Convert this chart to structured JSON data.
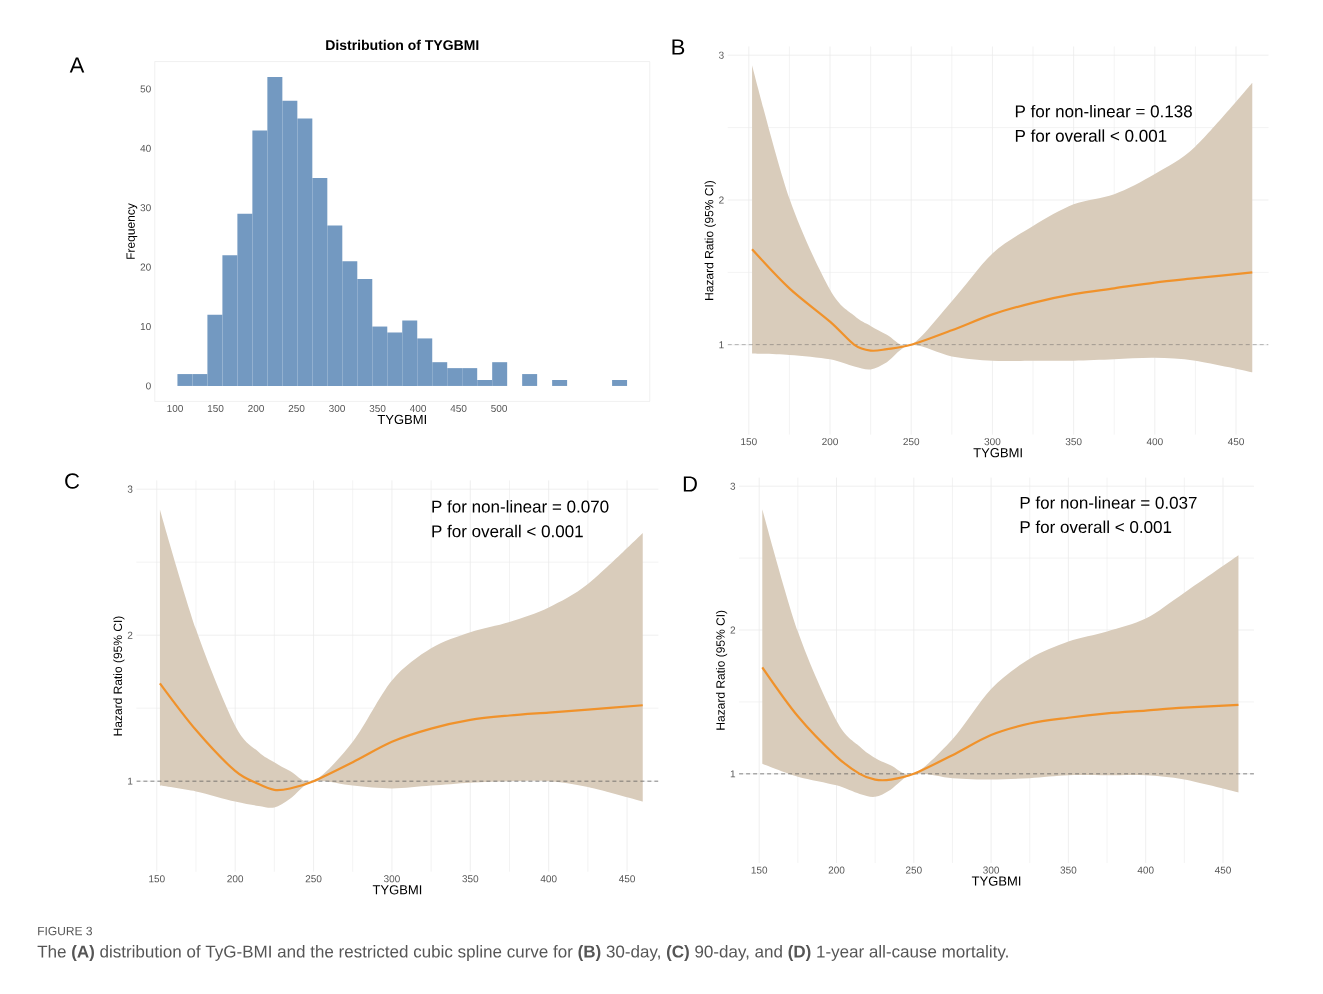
{
  "chart_data": [
    {
      "type": "histogram",
      "title": "Distribution of TYGBMI",
      "xlabel": "TYGBMI",
      "ylabel": "Frequency",
      "bins": [
        103,
        121.5,
        140,
        158.5,
        177,
        195.5,
        214,
        232.5,
        251,
        269.5,
        288,
        306.5,
        325,
        343.5,
        362,
        380.5,
        399,
        417.5,
        436,
        454.5,
        473,
        491.5,
        510,
        528.5,
        547,
        565.5,
        584,
        602.5,
        621,
        639.5,
        658
      ],
      "values": [
        2,
        2,
        12,
        22,
        29,
        43,
        52,
        48,
        45,
        35,
        27,
        21,
        18,
        10,
        9,
        11,
        8,
        4,
        3,
        3,
        1,
        4,
        0,
        2,
        0,
        1,
        0,
        0,
        0,
        1
      ],
      "color": "#7399c1",
      "xlim": [
        75,
        686
      ],
      "ylim": [
        -2.6,
        54.6
      ],
      "xticks": [
        100,
        150,
        200,
        250,
        300,
        350,
        400,
        450,
        500
      ],
      "yticks": [
        0,
        10,
        20,
        30,
        40,
        50
      ],
      "grid": false,
      "annotations": [
        "A"
      ]
    },
    {
      "type": "line",
      "xlabel": "TYGBMI",
      "ylabel": "Hazard Ratio (95% CI)",
      "x": [
        152,
        175,
        200,
        215,
        225,
        235,
        250,
        275,
        300,
        325,
        350,
        375,
        400,
        425,
        460
      ],
      "series": [
        {
          "color": "#f0922b",
          "values": [
            1.66,
            1.39,
            1.16,
            1.0,
            0.96,
            0.97,
            1.0,
            1.1,
            1.21,
            1.29,
            1.35,
            1.39,
            1.43,
            1.46,
            1.5
          ],
          "lower": [
            0.94,
            0.93,
            0.9,
            0.85,
            0.83,
            0.88,
            1.0,
            0.92,
            0.89,
            0.89,
            0.89,
            0.9,
            0.91,
            0.89,
            0.81
          ],
          "upper": [
            2.93,
            2.01,
            1.38,
            1.2,
            1.13,
            1.07,
            1.0,
            1.3,
            1.63,
            1.82,
            1.97,
            2.04,
            2.18,
            2.37,
            2.81
          ]
        }
      ],
      "ref_lines": [
        {
          "axis": "y",
          "value": 1,
          "color": "#555555",
          "line_style": "dashed"
        }
      ],
      "xlim": [
        137,
        470
      ],
      "ylim": [
        0.38,
        3.06
      ],
      "xticks": [
        150,
        200,
        250,
        300,
        350,
        400,
        450
      ],
      "yticks": [
        1,
        2,
        3
      ],
      "grid": true,
      "line_style": "solid",
      "annotations": [
        "B",
        "P for non-linear = 0.138",
        "P for overall < 0.001"
      ]
    },
    {
      "type": "line",
      "xlabel": "TYGBMI",
      "ylabel": "Hazard Ratio (95% CI)",
      "x": [
        152,
        175,
        200,
        215,
        225,
        235,
        250,
        275,
        300,
        325,
        350,
        375,
        400,
        425,
        460
      ],
      "series": [
        {
          "color": "#f0922b",
          "values": [
            1.67,
            1.35,
            1.07,
            0.98,
            0.94,
            0.95,
            1.0,
            1.13,
            1.27,
            1.36,
            1.42,
            1.45,
            1.47,
            1.49,
            1.52
          ],
          "lower": [
            0.97,
            0.93,
            0.86,
            0.83,
            0.82,
            0.88,
            1.0,
            0.97,
            0.95,
            0.97,
            0.99,
            1.0,
            1.0,
            0.96,
            0.86
          ],
          "upper": [
            2.86,
            2.04,
            1.38,
            1.2,
            1.13,
            1.07,
            1.0,
            1.27,
            1.69,
            1.91,
            2.02,
            2.09,
            2.19,
            2.35,
            2.7
          ]
        }
      ],
      "ref_lines": [
        {
          "axis": "y",
          "value": 1,
          "color": "#555555",
          "line_style": "dashed"
        }
      ],
      "xlim": [
        137,
        470
      ],
      "ylim": [
        0.38,
        3.06
      ],
      "xticks": [
        150,
        200,
        250,
        300,
        350,
        400,
        450
      ],
      "yticks": [
        1,
        2,
        3
      ],
      "grid": true,
      "line_style": "solid",
      "annotations": [
        "C",
        "P for non-linear = 0.070",
        "P for overall < 0.001"
      ]
    },
    {
      "type": "line",
      "xlabel": "TYGBMI",
      "ylabel": "Hazard Ratio (95% CI)",
      "x": [
        152,
        175,
        200,
        215,
        225,
        235,
        250,
        275,
        300,
        325,
        350,
        375,
        400,
        425,
        460
      ],
      "series": [
        {
          "color": "#f0922b",
          "values": [
            1.74,
            1.4,
            1.12,
            1.0,
            0.96,
            0.96,
            1.0,
            1.13,
            1.27,
            1.35,
            1.39,
            1.42,
            1.44,
            1.46,
            1.48
          ],
          "lower": [
            1.07,
            0.98,
            0.92,
            0.86,
            0.84,
            0.89,
            1.0,
            0.97,
            0.96,
            0.97,
            0.99,
            0.99,
            0.99,
            0.96,
            0.87
          ],
          "upper": [
            2.84,
            1.99,
            1.37,
            1.19,
            1.11,
            1.06,
            1.0,
            1.24,
            1.59,
            1.8,
            1.92,
            1.99,
            2.08,
            2.26,
            2.52
          ]
        }
      ],
      "ref_lines": [
        {
          "axis": "y",
          "value": 1,
          "color": "#555555",
          "line_style": "dashed"
        }
      ],
      "xlim": [
        137,
        470
      ],
      "ylim": [
        0.38,
        3.06
      ],
      "xticks": [
        150,
        200,
        250,
        300,
        350,
        400,
        450
      ],
      "yticks": [
        1,
        2,
        3
      ],
      "grid": true,
      "line_style": "solid",
      "annotations": [
        "D",
        "P for non-linear = 0.037",
        "P for overall < 0.001",
        "FIGURE 3",
        "The **(A)** distribution of TyG-BMI and the restricted cubic spline curve for **(B)** 30-day, **(C)** 90-day, and **(D)** 1-year all-cause mortality."
      ]
    }
  ]
}
